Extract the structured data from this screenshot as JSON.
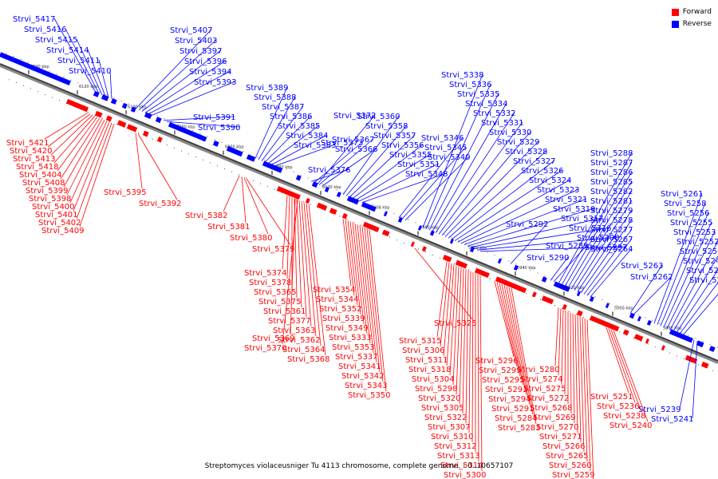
{
  "legend": [
    {
      "label": "Forward",
      "color": "#ff0000"
    },
    {
      "label": "Reverse",
      "color": "#0000ff"
    }
  ],
  "caption": "Streptomyces violaceusniger Tu 4113 chromosome, complete genome. - 0..10657107",
  "colors": {
    "axis": "#8a8a8a",
    "axis_dark": "#404040",
    "forward": "#ff0000",
    "reverse": "#0000ff"
  },
  "scale_ticks": [
    "6140 kbp",
    "6120 kbp",
    "6100 kbp",
    "6080 kbp",
    "6060 kbp",
    "6040 kbp",
    "6020 kbp",
    "6000 kbp",
    "5980 kbp",
    "5960 kbp",
    "5940 kbp",
    "5920 kbp",
    "5900 kbp",
    "5880 kbp"
  ],
  "reverse_genes": [
    "Strvi_5417",
    "Strvi_5416",
    "Strvi_5415",
    "Strvi_5414",
    "Strvi_5411",
    "Strvi_5410",
    "Strvi_5407",
    "Strvi_5403",
    "Strvi_5397",
    "Strvi_5396",
    "Strvi_5394",
    "Strvi_5393",
    "Strvi_5391",
    "Strvi_5390",
    "Strvi_5389",
    "Strvi_5388",
    "Strvi_5387",
    "Strvi_5386",
    "Strvi_5385",
    "Strvi_5384",
    "Strvi_5383",
    "Strvi_5376",
    "Strvi_5373",
    "Strvi_5372",
    "Strvi_5367",
    "Strvi_5366",
    "Strvi_5360",
    "Strvi_5358",
    "Strvi_5357",
    "Strvi_5356",
    "Strvi_5355",
    "Strvi_5351",
    "Strvi_5348",
    "Strvi_5346",
    "Strvi_5345",
    "Strvi_5340",
    "Strvi_5338",
    "Strvi_5336",
    "Strvi_5335",
    "Strvi_5334",
    "Strvi_5332",
    "Strvi_5331",
    "Strvi_5330",
    "Strvi_5329",
    "Strvi_5328",
    "Strvi_5327",
    "Strvi_5326",
    "Strvi_5324",
    "Strvi_5323",
    "Strvi_5321",
    "Strvi_5319",
    "Strvi_5317",
    "Strvi_5316",
    "Strvi_5308",
    "Strvi_5297",
    "Strvi_5292",
    "Strvi_5290",
    "Strvi_5289",
    "Strvi_5288",
    "Strvi_5287",
    "Strvi_5286",
    "Strvi_5285",
    "Strvi_5282",
    "Strvi_5281",
    "Strvi_5279",
    "Strvi_5278",
    "Strvi_5277",
    "Strvi_5267",
    "Strvi_5264",
    "Strvi_5263",
    "Strvi_5262",
    "Strvi_5261",
    "Strvi_5258",
    "Strvi_5256",
    "Strvi_5255",
    "Strvi_5253",
    "Strvi_5252",
    "Strvi_5250",
    "Strvi_5249",
    "Strvi_5248",
    "Strvi_5237",
    "Strvi_5239",
    "Strvi_5241"
  ],
  "forward_genes": [
    "Strvi_5421",
    "Strvi_5420",
    "Strvi_5413",
    "Strvi_5418",
    "Strvi_5404",
    "Strvi_5408",
    "Strvi_5399",
    "Strvi_5398",
    "Strvi_5400",
    "Strvi_5401",
    "Strvi_5402",
    "Strvi_5409",
    "Strvi_5395",
    "Strvi_5392",
    "Strvi_5382",
    "Strvi_5381",
    "Strvi_5380",
    "Strvi_5379",
    "Strvi_5374",
    "Strvi_5378",
    "Strvi_5365",
    "Strvi_5375",
    "Strvi_5361",
    "Strvi_5377",
    "Strvi_5363",
    "Strvi_5362",
    "Strvi_5364",
    "Strvi_5368",
    "Strvi_5369",
    "Strvi_5370",
    "Strvi_5354",
    "Strvi_5344",
    "Strvi_5352",
    "Strvi_5339",
    "Strvi_5349",
    "Strvi_5333",
    "Strvi_5353",
    "Strvi_5337",
    "Strvi_5341",
    "Strvi_5342",
    "Strvi_5343",
    "Strvi_5350",
    "Strvi_5325",
    "Strvi_5315",
    "Strvi_5306",
    "Strvi_5311",
    "Strvi_5318",
    "Strvi_5304",
    "Strvi_5298",
    "Strvi_5320",
    "Strvi_5305",
    "Strvi_5322",
    "Strvi_5307",
    "Strvi_5310",
    "Strvi_5312",
    "Strvi_5313",
    "Strvi_5314",
    "Strvi_5300",
    "Strvi_5296",
    "Strvi_5299",
    "Strvi_5295",
    "Strvi_5293",
    "Strvi_5294",
    "Strvi_5291",
    "Strvi_5284",
    "Strvi_5283",
    "Strvi_5280",
    "Strvi_5274",
    "Strvi_5275",
    "Strvi_5272",
    "Strvi_5268",
    "Strvi_5269",
    "Strvi_5270",
    "Strvi_5271",
    "Strvi_5266",
    "Strvi_5265",
    "Strvi_5260",
    "Strvi_5259",
    "Strvi_5254",
    "Strvi_5251",
    "Strvi_5236",
    "Strvi_5238",
    "Strvi_5240"
  ]
}
